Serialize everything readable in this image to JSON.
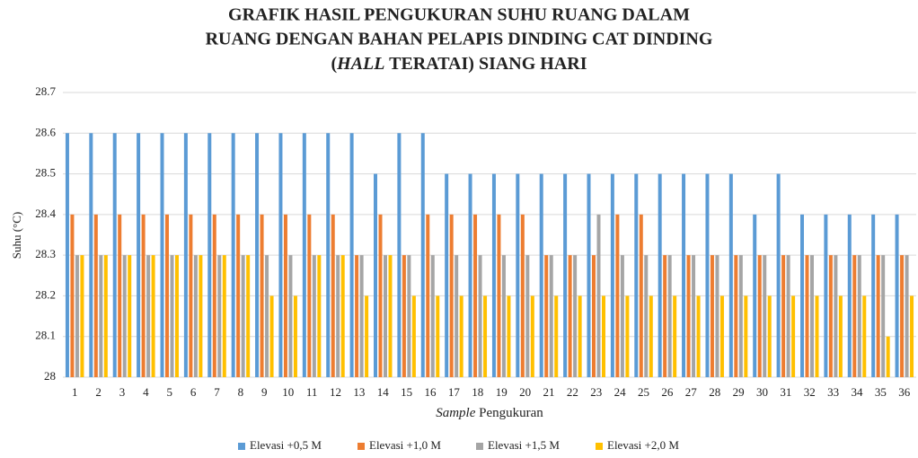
{
  "chart_data": {
    "type": "bar",
    "title": [
      "GRAFIK HASIL PENGUKURAN SUHU RUANG DALAM",
      "RUANG DENGAN BAHAN PELAPIS DINDING CAT DINDING",
      [
        "(",
        "HALL",
        " TERATAI) SIANG HARI"
      ]
    ],
    "y_label": "Suhu (°C)",
    "x_label": [
      "Sample",
      " Pengukuran"
    ],
    "categories": [
      "1",
      "2",
      "3",
      "4",
      "5",
      "6",
      "7",
      "8",
      "9",
      "10",
      "11",
      "12",
      "13",
      "14",
      "15",
      "16",
      "17",
      "18",
      "19",
      "20",
      "21",
      "22",
      "23",
      "24",
      "25",
      "26",
      "27",
      "28",
      "29",
      "30",
      "31",
      "32",
      "33",
      "34",
      "35",
      "36"
    ],
    "series": [
      {
        "name": "Elevasi +0,5 M",
        "color": "#5b9bd5",
        "values": [
          28.6,
          28.6,
          28.6,
          28.6,
          28.6,
          28.6,
          28.6,
          28.6,
          28.6,
          28.6,
          28.6,
          28.6,
          28.6,
          28.5,
          28.6,
          28.6,
          28.5,
          28.5,
          28.5,
          28.5,
          28.5,
          28.5,
          28.5,
          28.5,
          28.5,
          28.5,
          28.5,
          28.5,
          28.5,
          28.4,
          28.5,
          28.4,
          28.4,
          28.4,
          28.4,
          28.4
        ]
      },
      {
        "name": "Elevasi +1,0 M",
        "color": "#ed7d31",
        "values": [
          28.4,
          28.4,
          28.4,
          28.4,
          28.4,
          28.4,
          28.4,
          28.4,
          28.4,
          28.4,
          28.4,
          28.4,
          28.3,
          28.4,
          28.3,
          28.4,
          28.4,
          28.4,
          28.4,
          28.4,
          28.3,
          28.3,
          28.3,
          28.4,
          28.4,
          28.3,
          28.3,
          28.3,
          28.3,
          28.3,
          28.3,
          28.3,
          28.3,
          28.3,
          28.3,
          28.3
        ]
      },
      {
        "name": "Elevasi +1,5 M",
        "color": "#a5a5a5",
        "values": [
          28.3,
          28.3,
          28.3,
          28.3,
          28.3,
          28.3,
          28.3,
          28.3,
          28.3,
          28.3,
          28.3,
          28.3,
          28.3,
          28.3,
          28.3,
          28.3,
          28.3,
          28.3,
          28.3,
          28.3,
          28.3,
          28.3,
          28.4,
          28.3,
          28.3,
          28.3,
          28.3,
          28.3,
          28.3,
          28.3,
          28.3,
          28.3,
          28.3,
          28.3,
          28.3,
          28.3
        ]
      },
      {
        "name": "Elevasi +2,0 M",
        "color": "#ffc000",
        "values": [
          28.3,
          28.3,
          28.3,
          28.3,
          28.3,
          28.3,
          28.3,
          28.3,
          28.2,
          28.2,
          28.3,
          28.3,
          28.2,
          28.3,
          28.2,
          28.2,
          28.2,
          28.2,
          28.2,
          28.2,
          28.2,
          28.2,
          28.2,
          28.2,
          28.2,
          28.2,
          28.2,
          28.2,
          28.2,
          28.2,
          28.2,
          28.2,
          28.2,
          28.2,
          28.1,
          28.2
        ]
      }
    ],
    "ylim": [
      28,
      28.7
    ],
    "yticks": [
      28,
      28.1,
      28.2,
      28.3,
      28.4,
      28.5,
      28.6,
      28.7
    ],
    "grid": true,
    "legend": "bottom"
  }
}
